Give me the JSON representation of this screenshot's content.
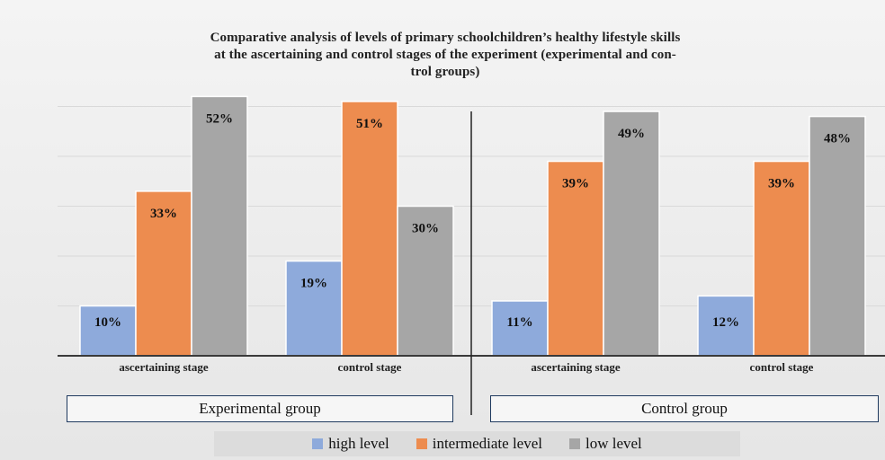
{
  "chart_data": {
    "type": "bar",
    "title_lines": [
      "Comparative analysis of levels of primary schoolchildren’s healthy lifestyle skills",
      "at the ascertaining and control stages of the experiment (experimental and con-",
      "trol groups)"
    ],
    "categories": [
      "ascertaining stage",
      "control stage",
      "ascertaining stage",
      "control stage"
    ],
    "groups": [
      "Experimental group",
      "Control group"
    ],
    "series": [
      {
        "name": "high level",
        "color": "#8eaadb",
        "values": [
          10,
          19,
          11,
          12
        ]
      },
      {
        "name": "intermediate level",
        "color": "#ed8c4f",
        "values": [
          33,
          51,
          39,
          39
        ]
      },
      {
        "name": "low level",
        "color": "#a6a6a6",
        "values": [
          52,
          30,
          49,
          48
        ]
      }
    ],
    "value_suffix": "%",
    "ylim": [
      0,
      55
    ],
    "grid": true,
    "legend_position": "bottom"
  }
}
